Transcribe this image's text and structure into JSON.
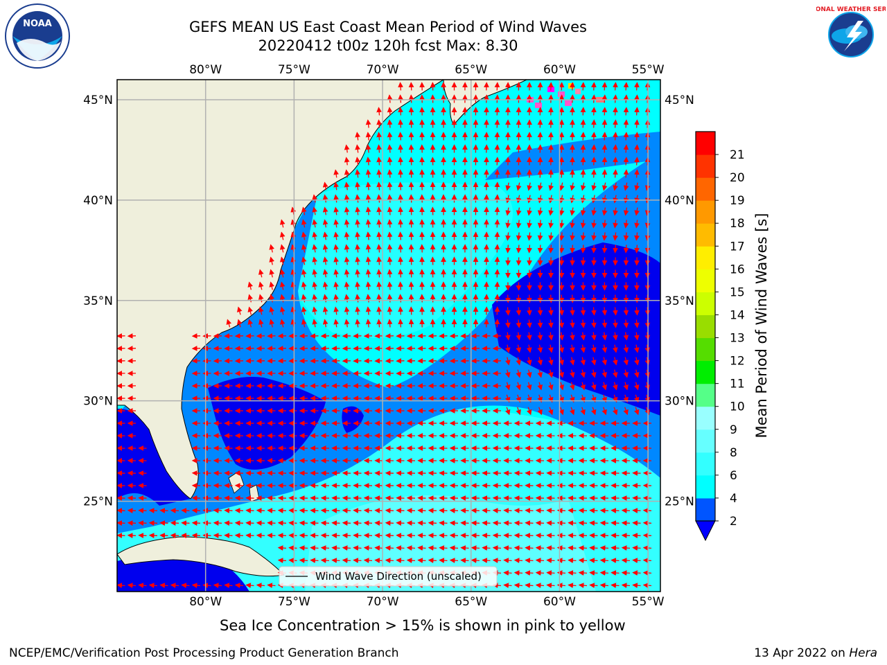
{
  "header": {
    "title_line1": "GEFS MEAN US East Coast Mean Period of Wind Waves",
    "title_line2": "20220412 t00z 120h fcst   Max: 8.30"
  },
  "map": {
    "lon_range": [
      -85,
      -54.3
    ],
    "lat_range": [
      20.5,
      46
    ],
    "lon_ticks": [
      {
        "value": -80,
        "label": "80°W"
      },
      {
        "value": -75,
        "label": "75°W"
      },
      {
        "value": -70,
        "label": "70°W"
      },
      {
        "value": -65,
        "label": "65°W"
      },
      {
        "value": -60,
        "label": "60°W"
      },
      {
        "value": -55,
        "label": "55°W"
      }
    ],
    "lat_ticks": [
      {
        "value": 45,
        "label": "45°N"
      },
      {
        "value": 40,
        "label": "40°N"
      },
      {
        "value": 35,
        "label": "35°N"
      },
      {
        "value": 30,
        "label": "30°N"
      },
      {
        "value": 25,
        "label": "25°N"
      }
    ],
    "gridlines": true,
    "arrow_color": "#ff0000",
    "land_color": "#efefdc",
    "legend_label": "Wind Wave Direction (unscaled)"
  },
  "colorbar": {
    "label": "Mean Period of Wind Waves [s]",
    "ticks": [
      "2",
      "4",
      "6",
      "8",
      "9",
      "10",
      "11",
      "12",
      "13",
      "14",
      "15",
      "16",
      "17",
      "18",
      "19",
      "20",
      "21"
    ],
    "colors": [
      "#0055ff",
      "#00ffff",
      "#33ffff",
      "#66ffff",
      "#99ffff",
      "#55ff88",
      "#00ee00",
      "#55dd00",
      "#99dd00",
      "#ccff00",
      "#eeff00",
      "#ffee00",
      "#ffbb00",
      "#ff9900",
      "#ff6600",
      "#ff3300",
      "#ff0000"
    ],
    "extend_min_color": "#0000ff"
  },
  "notes": {
    "sea_ice": "Sea Ice Concentration > 15% is shown in pink to yellow"
  },
  "footer": {
    "left": "NCEP/EMC/Verification Post Processing Product Generation Branch",
    "right_prefix": "13 Apr 2022 on ",
    "right_host": "Hera"
  },
  "logos": {
    "noaa_text": "NOAA",
    "nws_text": "NATIONAL WEATHER SERVICE"
  }
}
